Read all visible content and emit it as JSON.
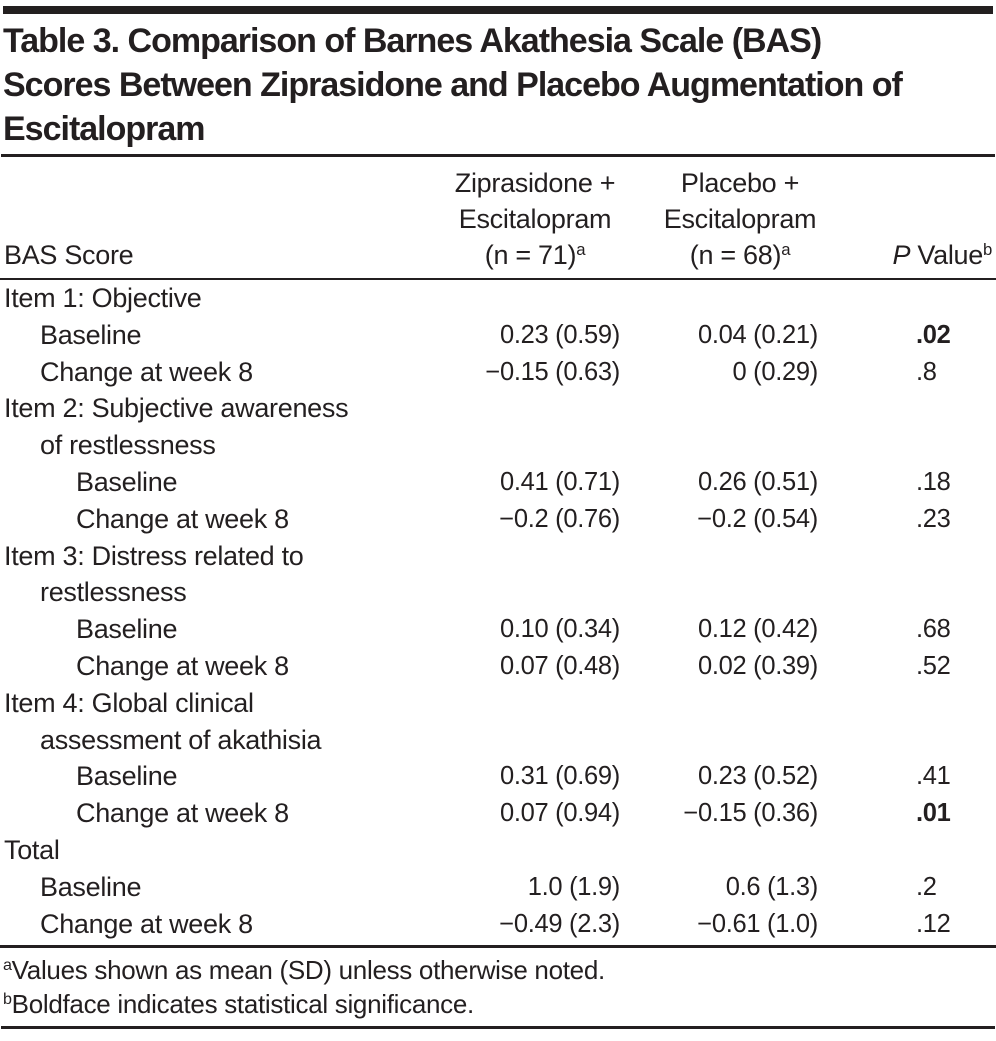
{
  "page": {
    "title_lines": [
      "Table 3. Comparison of Barnes Akathesia Scale (BAS)",
      "Scores Between Ziprasidone and Placebo Augmentation of",
      "Escitalopram"
    ]
  },
  "header": {
    "row_label": "BAS Score",
    "ziprasidone": {
      "line1": "Ziprasidone +",
      "line2": "Escitalopram",
      "n": "(n = 71)",
      "sup": "a"
    },
    "placebo": {
      "line1": "Placebo +",
      "line2": "Escitalopram",
      "n": "(n = 68)",
      "sup": "a"
    },
    "pvalue": {
      "p": "P",
      "value": " Value",
      "sup": "b"
    }
  },
  "rows": [
    {
      "label": "Item 1: Objective",
      "indent": 0,
      "ziprasidone": "",
      "placebo": "",
      "p": "",
      "p_bold": false
    },
    {
      "label": "Baseline",
      "indent": 1,
      "ziprasidone": "0.23 (0.59)",
      "placebo": "0.04 (0.21)",
      "p": ".02",
      "p_bold": true
    },
    {
      "label": "Change at week 8",
      "indent": 1,
      "ziprasidone": "−0.15 (0.63)",
      "placebo": "0 (0.29)",
      "p": ".8",
      "p_bold": false
    },
    {
      "label": "Item 2: Subjective awareness",
      "indent": 0,
      "ziprasidone": "",
      "placebo": "",
      "p": "",
      "p_bold": false
    },
    {
      "label": "of restlessness",
      "indent": 1,
      "ziprasidone": "",
      "placebo": "",
      "p": "",
      "p_bold": false
    },
    {
      "label": "Baseline",
      "indent": 2,
      "ziprasidone": "0.41 (0.71)",
      "placebo": "0.26 (0.51)",
      "p": ".18",
      "p_bold": false
    },
    {
      "label": "Change at week 8",
      "indent": 2,
      "ziprasidone": "−0.2 (0.76)",
      "placebo": "−0.2 (0.54)",
      "p": ".23",
      "p_bold": false
    },
    {
      "label": "Item 3: Distress related to",
      "indent": 0,
      "ziprasidone": "",
      "placebo": "",
      "p": "",
      "p_bold": false
    },
    {
      "label": "restlessness",
      "indent": 1,
      "ziprasidone": "",
      "placebo": "",
      "p": "",
      "p_bold": false
    },
    {
      "label": "Baseline",
      "indent": 2,
      "ziprasidone": "0.10 (0.34)",
      "placebo": "0.12 (0.42)",
      "p": ".68",
      "p_bold": false
    },
    {
      "label": "Change at week 8",
      "indent": 2,
      "ziprasidone": "0.07 (0.48)",
      "placebo": "0.02 (0.39)",
      "p": ".52",
      "p_bold": false
    },
    {
      "label": "Item 4: Global clinical",
      "indent": 0,
      "ziprasidone": "",
      "placebo": "",
      "p": "",
      "p_bold": false
    },
    {
      "label": "assessment of akathisia",
      "indent": 1,
      "ziprasidone": "",
      "placebo": "",
      "p": "",
      "p_bold": false
    },
    {
      "label": "Baseline",
      "indent": 2,
      "ziprasidone": "0.31 (0.69)",
      "placebo": "0.23 (0.52)",
      "p": ".41",
      "p_bold": false
    },
    {
      "label": "Change at week 8",
      "indent": 2,
      "ziprasidone": "0.07 (0.94)",
      "placebo": "−0.15 (0.36)",
      "p": ".01",
      "p_bold": true
    },
    {
      "label": "Total",
      "indent": 0,
      "ziprasidone": "",
      "placebo": "",
      "p": "",
      "p_bold": false
    },
    {
      "label": "Baseline",
      "indent": 1,
      "ziprasidone": "1.0 (1.9)",
      "placebo": "0.6 (1.3)",
      "p": ".2",
      "p_bold": false
    },
    {
      "label": "Change at week 8",
      "indent": 1,
      "ziprasidone": "−0.49 (2.3)",
      "placebo": "−0.61 (1.0)",
      "p": ".12",
      "p_bold": false
    }
  ],
  "footnotes": [
    {
      "sup": "a",
      "text": "Values shown as mean (SD) unless otherwise noted."
    },
    {
      "sup": "b",
      "text": "Boldface indicates statistical significance."
    }
  ]
}
